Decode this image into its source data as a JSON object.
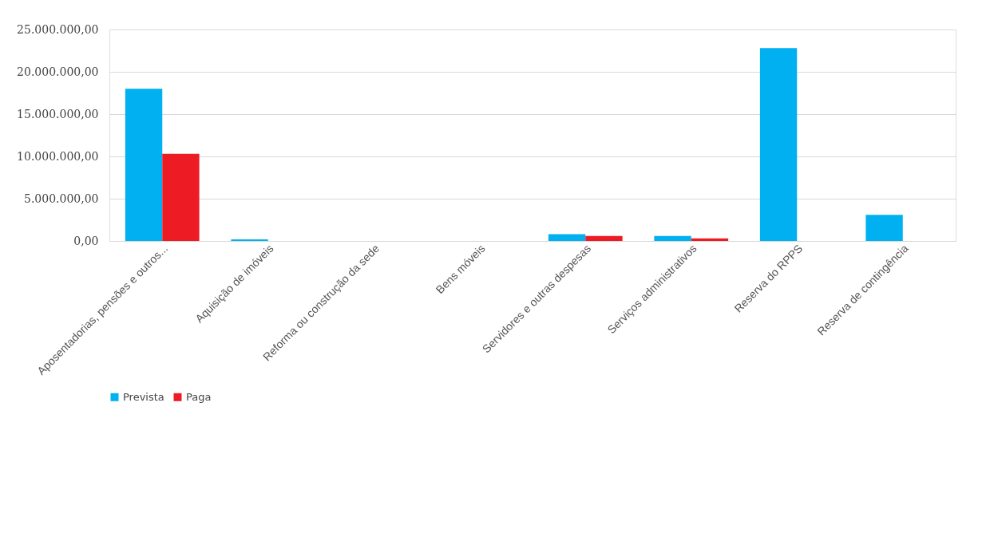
{
  "chart_data": {
    "type": "bar",
    "categories": [
      "Aposentadorias, pensões e outros...",
      "Aquisição de imóveis",
      "Reforma ou construção da sede",
      "Bens móveis",
      "Servidores e outras despesas",
      "Serviços administrativos",
      "Reserva do RPPS",
      "Reserva de contingência"
    ],
    "series": [
      {
        "name": "Prevista",
        "color": "#00b0f0",
        "values": [
          18000000,
          200000,
          0,
          0,
          800000,
          600000,
          22800000,
          3100000
        ]
      },
      {
        "name": "Paga",
        "color": "#ed1c24",
        "values": [
          10300000,
          0,
          0,
          0,
          600000,
          300000,
          0,
          0
        ]
      }
    ],
    "ylim": [
      0,
      25000000
    ],
    "yticks": [
      {
        "value": 0,
        "label": "0,00"
      },
      {
        "value": 5000000,
        "label": "5.000.000,00"
      },
      {
        "value": 10000000,
        "label": "10.000.000,00"
      },
      {
        "value": 15000000,
        "label": "15.000.000,00"
      },
      {
        "value": 20000000,
        "label": "20.000.000,00"
      },
      {
        "value": 25000000,
        "label": "25.000.000,00"
      }
    ],
    "grid": "y",
    "legend": "bottom"
  }
}
